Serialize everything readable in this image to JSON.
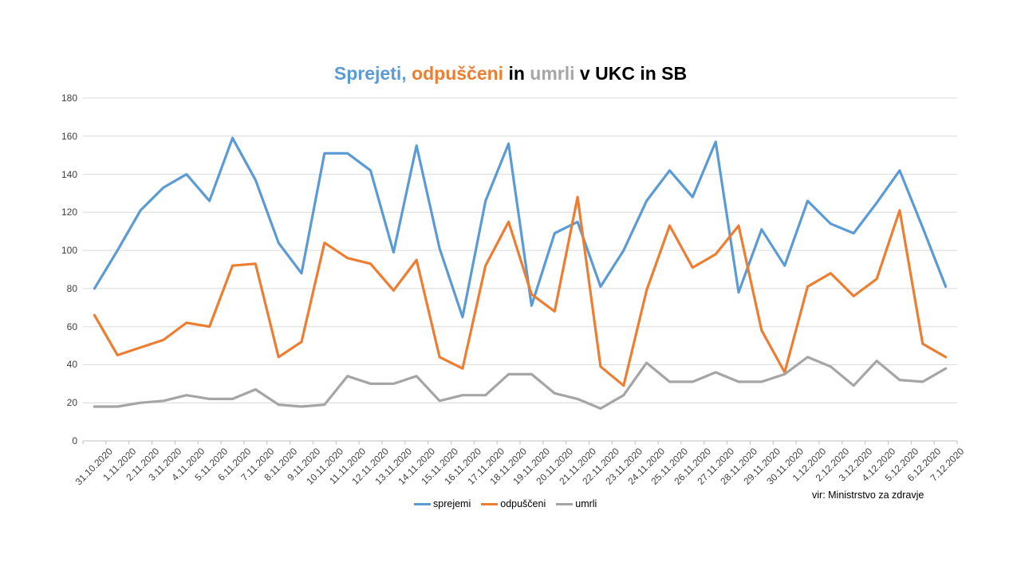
{
  "title": {
    "segments": [
      {
        "text": "Sprejeti, ",
        "color": "#5B9BD5"
      },
      {
        "text": "odpuščeni",
        "color": "#ED7D31"
      },
      {
        "text": " in ",
        "color": "#000000"
      },
      {
        "text": "umrli",
        "color": "#A6A6A6"
      },
      {
        "text": " v UKC in SB",
        "color": "#000000"
      }
    ]
  },
  "source_note": "vir: Ministrstvo za zdravje",
  "legend": [
    {
      "label": "sprejemi",
      "color": "#5B9BD5"
    },
    {
      "label": "odpuščeni",
      "color": "#ED7D31"
    },
    {
      "label": "umrli",
      "color": "#A5A5A5"
    }
  ],
  "colors": {
    "gridline": "#D9D9D9",
    "axis": "#BFBFBF",
    "tick_label": "#404040"
  },
  "chart_data": {
    "type": "line",
    "title": "Sprejeti, odpuščeni in umrli v UKC in SB",
    "categories": [
      "31.10.2020",
      "1.11.2020",
      "2.11.2020",
      "3.11.2020",
      "4.11.2020",
      "5.11.2020",
      "6.11.2020",
      "7.11.2020",
      "8.11.2020",
      "9.11.2020",
      "10.11.2020",
      "11.11.2020",
      "12.11.2020",
      "13.11.2020",
      "14.11.2020",
      "15.11.2020",
      "16.11.2020",
      "17.11.2020",
      "18.11.2020",
      "19.11.2020",
      "20.11.2020",
      "21.11.2020",
      "22.11.2020",
      "23.11.2020",
      "24.11.2020",
      "25.11.2020",
      "26.11.2020",
      "27.11.2020",
      "28.11.2020",
      "29.11.2020",
      "30.11.2020",
      "1.12.2020",
      "2.12.2020",
      "3.12.2020",
      "4.12.2020",
      "5.12.2020",
      "6.12.2020",
      "7.12.2020"
    ],
    "series": [
      {
        "name": "sprejemi",
        "color": "#5B9BD5",
        "values": [
          80,
          100,
          121,
          133,
          140,
          126,
          159,
          137,
          104,
          88,
          151,
          151,
          142,
          99,
          155,
          101,
          65,
          126,
          156,
          71,
          109,
          115,
          81,
          100,
          126,
          142,
          128,
          157,
          78,
          111,
          92,
          126,
          114,
          109,
          125,
          142,
          112,
          81
        ]
      },
      {
        "name": "odpuščeni",
        "color": "#ED7D31",
        "values": [
          66,
          45,
          49,
          53,
          62,
          60,
          92,
          93,
          44,
          52,
          104,
          96,
          93,
          79,
          95,
          44,
          38,
          92,
          115,
          77,
          68,
          128,
          39,
          29,
          79,
          113,
          91,
          98,
          113,
          58,
          36,
          81,
          88,
          76,
          85,
          121,
          51,
          44
        ]
      },
      {
        "name": "umrli",
        "color": "#A5A5A5",
        "values": [
          18,
          18,
          20,
          21,
          24,
          22,
          22,
          27,
          19,
          18,
          19,
          34,
          30,
          30,
          34,
          21,
          24,
          24,
          35,
          35,
          25,
          22,
          17,
          24,
          41,
          31,
          31,
          36,
          31,
          31,
          35,
          44,
          39,
          29,
          42,
          32,
          31,
          38
        ]
      }
    ],
    "xlabel": "",
    "ylabel": "",
    "ylim": [
      0,
      180
    ],
    "yticks": [
      0,
      20,
      40,
      60,
      80,
      100,
      120,
      140,
      160,
      180
    ],
    "grid": true,
    "legend_position": "bottom-center"
  }
}
